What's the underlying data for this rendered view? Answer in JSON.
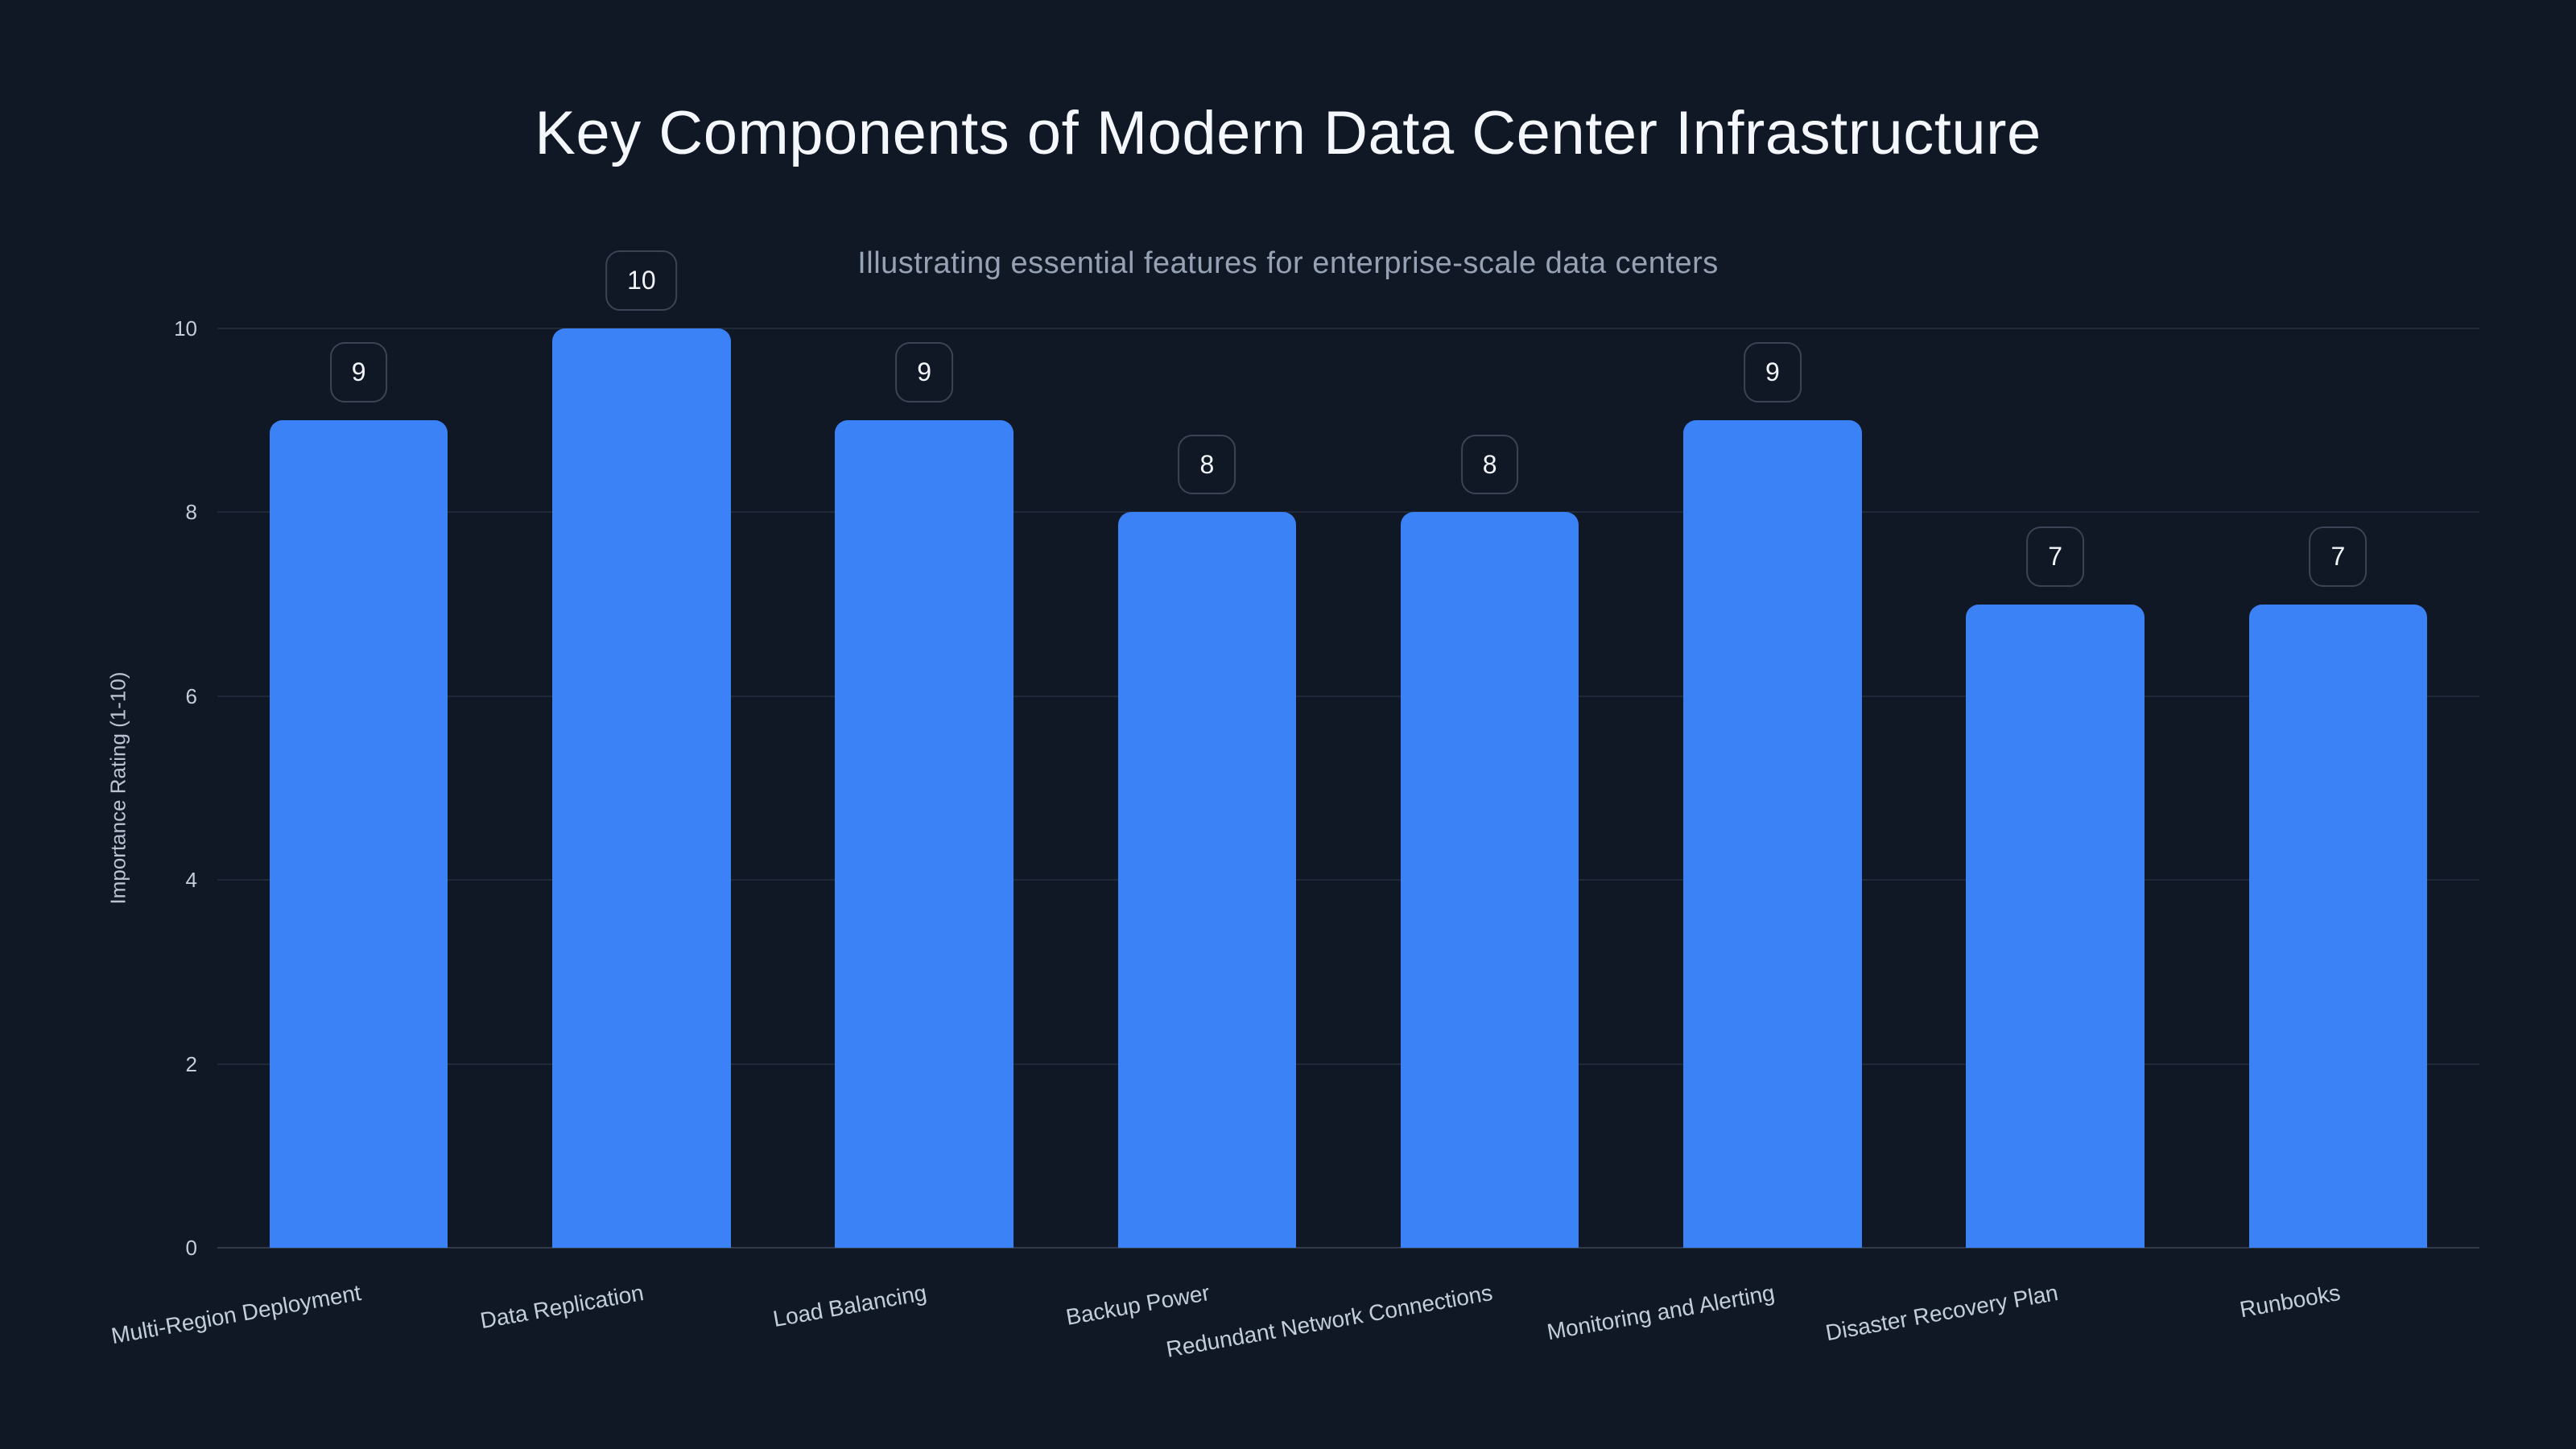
{
  "chart": {
    "title": "Key Components of Modern Data Center Infrastructure",
    "subtitle": "Illustrating essential features for enterprise-scale data centers",
    "ylabel": "Importance Rating (1-10)"
  },
  "chart_data": {
    "type": "bar",
    "title": "Key Components of Modern Data Center Infrastructure",
    "subtitle": "Illustrating essential features for enterprise-scale data centers",
    "xlabel": "",
    "ylabel": "Importance Rating (1-10)",
    "categories": [
      "Multi-Region Deployment",
      "Data Replication",
      "Load Balancing",
      "Backup Power",
      "Redundant Network Connections",
      "Monitoring and Alerting",
      "Disaster Recovery Plan",
      "Runbooks"
    ],
    "values": [
      9,
      10,
      9,
      8,
      8,
      9,
      7,
      7
    ],
    "value_labels": [
      "9",
      "10",
      "9",
      "8",
      "8",
      "9",
      "7",
      "7"
    ],
    "ylim": [
      0,
      10
    ],
    "yticks": [
      0,
      2,
      4,
      6,
      8,
      10
    ],
    "grid": true,
    "legend": false,
    "x_label_rotation_deg": -10,
    "colors": {
      "background": "#101826",
      "bar": "#3b82f6",
      "title_text": "#f4f7fb",
      "subtitle_text": "#96a2b4",
      "tick_text": "#c3cedb",
      "axis_title_text": "#b9c3d2",
      "gridline": "rgba(148,163,184,0.13)",
      "baseline": "rgba(148,163,184,0.25)",
      "badge_border": "rgba(148,163,184,0.32)",
      "badge_text": "#f2f5f9"
    }
  }
}
